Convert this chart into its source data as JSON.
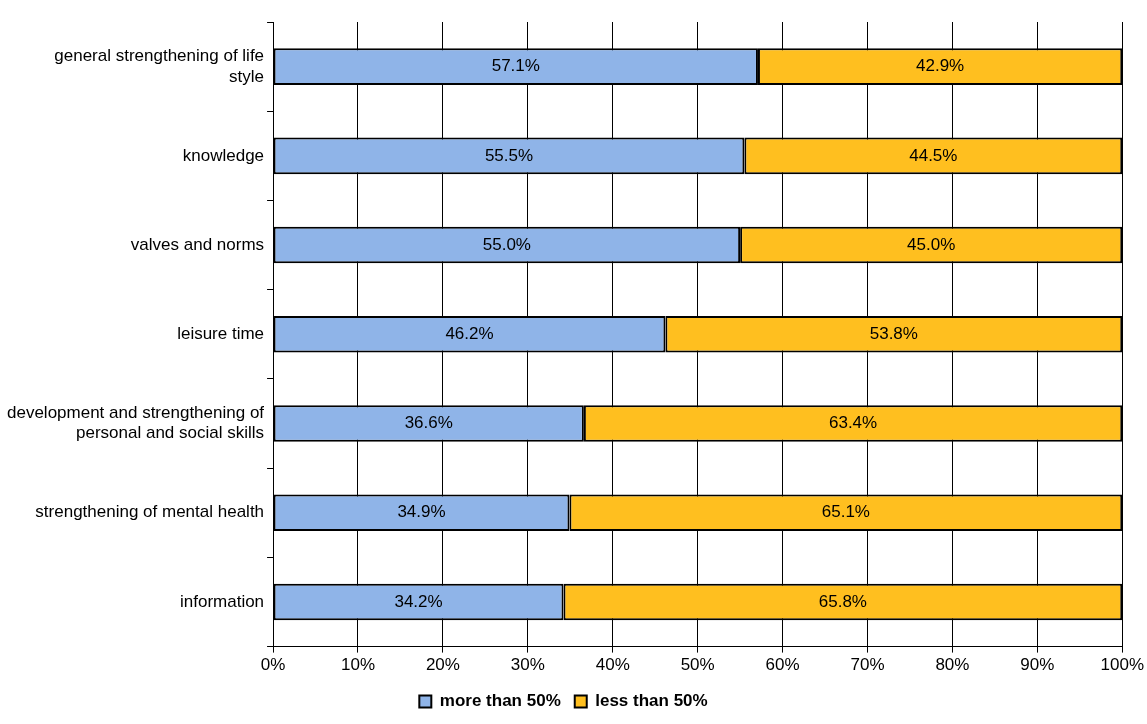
{
  "chart_data": {
    "type": "bar",
    "orientation": "horizontal",
    "stacked": true,
    "categories": [
      "general strengthening of life style",
      "knowledge",
      "valves and norms",
      "leisure time",
      "development and strengthening of personal and social skills",
      "strengthening of mental health",
      "information"
    ],
    "series": [
      {
        "name": "more than 50%",
        "color": "#8fb4e8",
        "values": [
          57.1,
          55.5,
          55.0,
          46.2,
          36.6,
          34.9,
          34.2
        ],
        "value_labels": [
          "57.1%",
          "55.5%",
          "55.0%",
          "46.2%",
          "36.6%",
          "34.9%",
          "34.2%"
        ]
      },
      {
        "name": "less than 50%",
        "color": "#ffbf1f",
        "values": [
          42.9,
          44.5,
          45.0,
          53.8,
          63.4,
          65.1,
          65.8
        ],
        "value_labels": [
          "42.9%",
          "44.5%",
          "45.0%",
          "53.8%",
          "63.4%",
          "65.1%",
          "65.8%"
        ]
      }
    ],
    "xlim": [
      0,
      100
    ],
    "xticks": [
      {
        "value": 0,
        "label": "0%"
      },
      {
        "value": 10,
        "label": "10%"
      },
      {
        "value": 20,
        "label": "20%"
      },
      {
        "value": 30,
        "label": "30%"
      },
      {
        "value": 40,
        "label": "40%"
      },
      {
        "value": 50,
        "label": "50%"
      },
      {
        "value": 60,
        "label": "60%"
      },
      {
        "value": 70,
        "label": "70%"
      },
      {
        "value": 80,
        "label": "80%"
      },
      {
        "value": 90,
        "label": "90%"
      },
      {
        "value": 100,
        "label": "100%"
      }
    ],
    "grid": "x",
    "legend": "bottom"
  }
}
